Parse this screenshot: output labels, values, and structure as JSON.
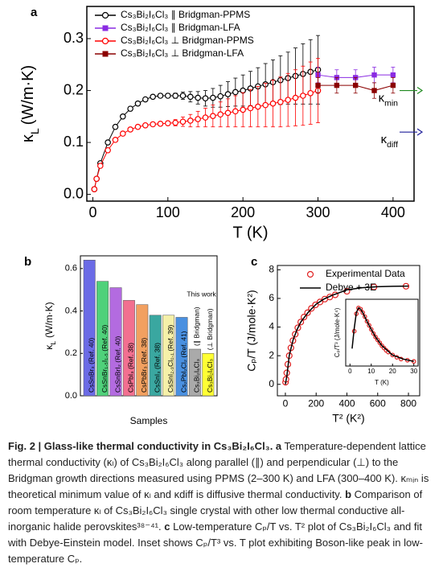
{
  "chart_data": [
    {
      "type": "line",
      "panel_label": "a",
      "xlabel": "T (K)",
      "ylabel": {
        "text": "κ",
        "subscript": "L",
        "unit": "(W/m·K)"
      },
      "xlim": [
        -8,
        428
      ],
      "xticks": [
        0,
        100,
        200,
        300,
        400
      ],
      "ylim": [
        -0.013,
        0.362
      ],
      "yticks": [
        {
          "value": 0,
          "label": "0.0"
        },
        0.1,
        0.2,
        0.3
      ],
      "legend": "upper left",
      "series": [
        {
          "name": "Cs₃Bi₂I₆Cl₃ ∥ Bridgman-PPMS",
          "color": "#000000",
          "marker": "open-circle",
          "style": "line+marker",
          "x": [
            2,
            5,
            10,
            20,
            30,
            40,
            50,
            60,
            70,
            80,
            90,
            100,
            110,
            120,
            130,
            140,
            150,
            160,
            170,
            180,
            190,
            200,
            210,
            220,
            230,
            240,
            250,
            260,
            270,
            280,
            290,
            300
          ],
          "values": [
            0.01,
            0.03,
            0.06,
            0.1,
            0.13,
            0.15,
            0.165,
            0.175,
            0.183,
            0.188,
            0.19,
            0.19,
            0.19,
            0.19,
            0.188,
            0.186,
            0.185,
            0.186,
            0.189,
            0.193,
            0.197,
            0.2,
            0.204,
            0.208,
            0.212,
            0.216,
            0.22,
            0.224,
            0.228,
            0.232,
            0.236,
            0.24
          ],
          "errors": [
            0.003,
            0.003,
            0.003,
            0.003,
            0.003,
            0.003,
            0.003,
            0.003,
            0.003,
            0.003,
            0.003,
            0.003,
            0.005,
            0.007,
            0.01,
            0.012,
            0.015,
            0.018,
            0.021,
            0.024,
            0.027,
            0.03,
            0.033,
            0.036,
            0.04,
            0.043,
            0.047,
            0.05,
            0.054,
            0.058,
            0.062,
            0.066
          ]
        },
        {
          "name": "Cs₃Bi₂I₆Cl₃ ∥ Bridgman-LFA",
          "color": "#8a2be2",
          "marker": "square",
          "style": "line+marker",
          "x": [
            300,
            325,
            350,
            375,
            400
          ],
          "values": [
            0.23,
            0.225,
            0.225,
            0.23,
            0.23
          ],
          "errors": [
            0.015,
            0.015,
            0.015,
            0.015,
            0.015
          ]
        },
        {
          "name": "Cs₃Bi₂I₆Cl₃ ⊥ Bridgman-PPMS",
          "color": "#ff0000",
          "marker": "open-circle",
          "style": "line+marker",
          "x": [
            2,
            5,
            10,
            20,
            30,
            40,
            50,
            60,
            70,
            80,
            90,
            100,
            110,
            120,
            130,
            140,
            150,
            160,
            170,
            180,
            190,
            200,
            210,
            220,
            230,
            240,
            250,
            260,
            270,
            280,
            290,
            300
          ],
          "values": [
            0.01,
            0.03,
            0.055,
            0.085,
            0.105,
            0.117,
            0.125,
            0.13,
            0.133,
            0.135,
            0.136,
            0.137,
            0.138,
            0.14,
            0.142,
            0.145,
            0.148,
            0.151,
            0.154,
            0.157,
            0.16,
            0.163,
            0.166,
            0.169,
            0.172,
            0.175,
            0.178,
            0.182,
            0.186,
            0.19,
            0.195,
            0.2
          ],
          "errors": [
            0.003,
            0.003,
            0.003,
            0.003,
            0.003,
            0.003,
            0.003,
            0.003,
            0.003,
            0.003,
            0.003,
            0.003,
            0.006,
            0.009,
            0.012,
            0.015,
            0.018,
            0.021,
            0.024,
            0.027,
            0.03,
            0.033,
            0.036,
            0.039,
            0.042,
            0.045,
            0.048,
            0.051,
            0.054,
            0.057,
            0.06,
            0.062
          ]
        },
        {
          "name": "Cs₃Bi₂I₆Cl₃ ⊥ Bridgman-LFA",
          "color": "#8b0000",
          "marker": "square",
          "style": "line+marker",
          "x": [
            300,
            325,
            350,
            375,
            400
          ],
          "values": [
            0.21,
            0.21,
            0.21,
            0.2,
            0.21
          ],
          "errors": [
            0.015,
            0.015,
            0.015,
            0.015,
            0.015
          ]
        }
      ],
      "annotations": [
        {
          "text": "κ",
          "subscript": "min",
          "y": 0.2,
          "color": "#1f8a1f"
        },
        {
          "text": "κ",
          "subscript": "diff",
          "y": 0.12,
          "color": "#1f1f9a"
        }
      ]
    },
    {
      "type": "bar",
      "panel_label": "b",
      "xlabel": "Samples",
      "ylabel": {
        "text": "κ",
        "subscript": "L",
        "unit": "(W/m·K)"
      },
      "ylim": [
        0,
        0.66
      ],
      "yticks": [
        {
          "value": 0,
          "label": "0.0"
        },
        0.2,
        0.4,
        0.6
      ],
      "categories": [
        "CsSnBr₃ (Ref. 40)",
        "CsSnBr₁.₅I₁.₅ (Ref. 40)",
        "CsSnBrI₂ (Ref. 40)",
        "CsPbI₃ (Ref. 38)",
        "CsPbBr₃ (Ref. 38)",
        "CsSnI₃ (Ref. 38)",
        "CsSnI₂.₉Cl₀.₁ (Ref. 39)",
        "Cs₂PbI₂Cl₂ (Ref. 41)",
        "Cs₃Bi₂I₆Cl₃",
        "Cs₃Bi₂I₆Cl₃"
      ],
      "values": [
        0.64,
        0.54,
        0.51,
        0.45,
        0.43,
        0.38,
        0.38,
        0.37,
        0.22,
        0.2
      ],
      "colors": [
        "#6b6be6",
        "#4fd17a",
        "#b36be0",
        "#f27090",
        "#f2a060",
        "#3aa7a0",
        "#f5f0a8",
        "#4a90e0",
        "#aaaaaa",
        "#ffff33"
      ],
      "bar_notes": [
        null,
        null,
        null,
        null,
        null,
        null,
        null,
        null,
        "(∥ Bridgman)",
        "(⊥ Bridgman)"
      ],
      "annotation": "This work",
      "annotation_color": "#e02020"
    },
    {
      "type": "scatter",
      "panel_label": "c",
      "xlabel": "T² (K²)",
      "ylabel": "Cₚ/T (J/mole·K²)",
      "xlim": [
        -52,
        873
      ],
      "xticks": [
        0,
        200,
        400,
        600,
        800
      ],
      "ylim": [
        -0.8,
        8.3
      ],
      "yticks": [
        0,
        2,
        4,
        6,
        8
      ],
      "legend": "upper right",
      "series": [
        {
          "name": "Experimental Data",
          "color": "#e02020",
          "marker": "open-circle",
          "style": "marker",
          "x": [
            1,
            4,
            9,
            16,
            25,
            36,
            49,
            64,
            81,
            100,
            121,
            144,
            169,
            196,
            225,
            256,
            289,
            324,
            400,
            576,
            784
          ],
          "values": [
            0.15,
            0.35,
            0.8,
            1.4,
            2.0,
            2.55,
            3.05,
            3.5,
            3.95,
            4.35,
            4.7,
            5.0,
            5.3,
            5.55,
            5.75,
            5.95,
            6.1,
            6.25,
            6.5,
            6.8,
            6.85
          ]
        },
        {
          "name": "Debye + 3E",
          "color": "#000000",
          "style": "line",
          "x": [
            0,
            10,
            25,
            50,
            75,
            100,
            150,
            200,
            250,
            300,
            400,
            500,
            600,
            700,
            800
          ],
          "values": [
            0,
            0.6,
            2.0,
            3.1,
            3.8,
            4.35,
            5.05,
            5.6,
            5.95,
            6.2,
            6.6,
            6.75,
            6.82,
            6.85,
            6.86
          ]
        }
      ]
    },
    {
      "type": "scatter",
      "xlabel": "T (K)",
      "ylabel": "Cₚ/T³ (J/mole·K⁴)",
      "xlim": [
        -2,
        32
      ],
      "xticks": [
        0,
        10,
        20,
        30
      ],
      "ylim": [
        0,
        1.15
      ],
      "series": [
        {
          "color": "#e02020",
          "marker": "open-circle",
          "style": "marker",
          "x": [
            2,
            3,
            4,
            5,
            6,
            7,
            8,
            9,
            10,
            11,
            12,
            13,
            14,
            15,
            16,
            17,
            18,
            20,
            22,
            24,
            27,
            30
          ],
          "values": [
            0.6,
            0.9,
            1.0,
            0.98,
            0.92,
            0.85,
            0.77,
            0.7,
            0.63,
            0.56,
            0.5,
            0.45,
            0.4,
            0.35,
            0.31,
            0.27,
            0.24,
            0.19,
            0.15,
            0.12,
            0.1,
            0.08
          ]
        },
        {
          "color": "#000000",
          "style": "line",
          "x": [
            1,
            2,
            3,
            4,
            5,
            6,
            8,
            10,
            12,
            15,
            20,
            25,
            30
          ],
          "values": [
            0.3,
            0.65,
            0.92,
            1.0,
            0.98,
            0.92,
            0.77,
            0.63,
            0.5,
            0.35,
            0.19,
            0.12,
            0.08
          ]
        }
      ]
    }
  ],
  "caption": [
    {
      "text": "Fig. 2 | Glass-like thermal conductivity in Cs₃Bi₂I₆Cl₃. a",
      "bold": true
    },
    {
      "text": " Temperature-dependent lattice thermal conductivity (κₗ) of Cs₃Bi₂I₆Cl₃ along parallel (∥) and perpendicular (⊥) to the Bridgman growth directions measured using PPMS (2–300 K) and LFA (300–400 K). κₘᵢₙ is theoretical minimum value of κₗ and κdiff is diffusive thermal conductivity. ",
      "bold": false
    },
    {
      "text": "b",
      "bold": true
    },
    {
      "text": " Comparison of room temperature κₗ of Cs₃Bi₂I₆Cl₃ single crystal with other low thermal conductive all-inorganic halide perovskites³⁸⁻⁴¹. ",
      "bold": false
    },
    {
      "text": "c",
      "bold": true
    },
    {
      "text": " Low-temperature Cₚ/T vs. T² plot of Cs₃Bi₂I₆Cl₃ and fit with Debye-Einstein model. Inset shows Cₚ/T³ vs. T plot exhibiting Boson-like peak in low-temperature Cₚ.",
      "bold": false
    }
  ]
}
